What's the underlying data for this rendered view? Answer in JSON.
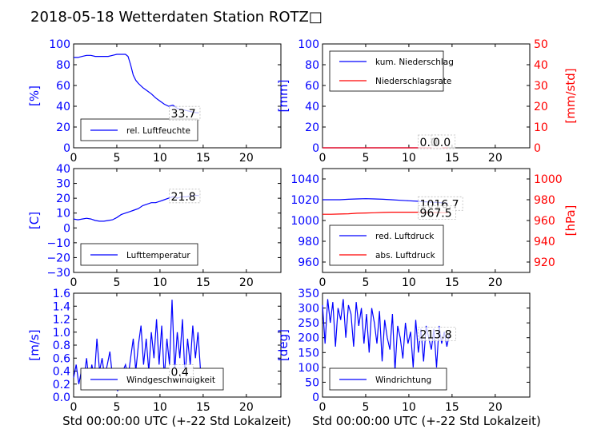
{
  "title": "2018-05-18 Wetterdaten Station ROTZ",
  "title_glyph": "□",
  "colors": {
    "blue": "#0000ff",
    "red": "#ff0000",
    "black": "#000000",
    "text": "#000000"
  },
  "xlabel": "Std 00:00:00 UTC (+-22 Std Lokalzeit)",
  "chart_data": [
    {
      "type": "line",
      "id": "humidity",
      "ylabel": "[%]",
      "ylim": [
        0,
        100
      ],
      "yticks": [
        "0",
        "20",
        "40",
        "60",
        "80",
        "100"
      ],
      "xlim": [
        0,
        24
      ],
      "xticks": [
        "0",
        "5",
        "10",
        "15",
        "20"
      ],
      "legend": "rel. Luftfeuchte",
      "legend_position": "lower-center",
      "latest_label": "33.7",
      "series": [
        {
          "name": "rel. Luftfeuchte",
          "color": "#0000ff",
          "x": [
            0,
            0.5,
            1,
            1.5,
            2,
            2.5,
            3,
            3.5,
            4,
            4.5,
            5,
            5.5,
            6,
            6.3,
            6.6,
            6.9,
            7.2,
            7.5,
            8,
            8.5,
            9,
            9.5,
            10,
            10.5,
            11,
            11.5,
            12,
            12.5,
            13,
            13.5,
            14,
            14.5
          ],
          "values": [
            87,
            87,
            88,
            89,
            89,
            88,
            88,
            88,
            88,
            89,
            90,
            90,
            90,
            88,
            80,
            70,
            65,
            62,
            58,
            55,
            52,
            48,
            45,
            42,
            40,
            41,
            38,
            37,
            36,
            35,
            34,
            33.7
          ]
        }
      ]
    },
    {
      "type": "line",
      "id": "precipitation",
      "ylabel": "[mm]",
      "ylabel_right": "[mm/std]",
      "ylim": [
        0,
        100
      ],
      "yticks": [
        "0",
        "20",
        "40",
        "60",
        "80",
        "100"
      ],
      "ylim_right": [
        0,
        50
      ],
      "yticks_right": [
        "0",
        "10",
        "20",
        "30",
        "40",
        "50"
      ],
      "xlim": [
        0,
        24
      ],
      "xticks": [
        "0",
        "5",
        "10",
        "15",
        "20"
      ],
      "legend_position": "upper-center",
      "latest_label_1": "0.0",
      "latest_label_2": "0.0",
      "series": [
        {
          "name": "kum. Niederschlag",
          "color": "#0000ff",
          "axis": "left",
          "x": [
            0,
            14.5
          ],
          "values": [
            0,
            0
          ]
        },
        {
          "name": "Niederschlagsrate",
          "color": "#ff0000",
          "axis": "right",
          "x": [
            0,
            14.5
          ],
          "values": [
            0,
            0
          ]
        }
      ]
    },
    {
      "type": "line",
      "id": "temperature",
      "ylabel": "[C]",
      "ylim": [
        -30,
        40
      ],
      "yticks": [
        "−30",
        "−20",
        "−10",
        "0",
        "10",
        "20",
        "30",
        "40"
      ],
      "xlim": [
        0,
        24
      ],
      "xticks": [
        "0",
        "5",
        "10",
        "15",
        "20"
      ],
      "legend": "Lufttemperatur",
      "legend_position": "lower-center",
      "latest_label": "21.8",
      "series": [
        {
          "name": "Lufttemperatur",
          "color": "#0000ff",
          "x": [
            0,
            0.5,
            1,
            1.5,
            2,
            2.5,
            3,
            3.5,
            4,
            4.5,
            5,
            5.5,
            6,
            6.5,
            7,
            7.5,
            8,
            8.5,
            9,
            9.5,
            10,
            10.5,
            11,
            11.5,
            12,
            12.5,
            13,
            13.5,
            14,
            14.5
          ],
          "values": [
            6,
            5.5,
            6,
            6.5,
            6,
            5,
            4.5,
            4.5,
            5,
            5.5,
            7,
            9,
            10,
            11,
            12,
            13,
            15,
            16,
            17,
            17,
            18,
            19,
            20,
            21,
            20,
            21,
            21,
            21.5,
            22,
            21.8
          ]
        }
      ]
    },
    {
      "type": "line",
      "id": "pressure",
      "ylabel_right": "[hPa]",
      "ylim": [
        950,
        1050
      ],
      "yticks": [
        "960",
        "980",
        "1000",
        "1020",
        "1040"
      ],
      "ylim_right": [
        910,
        1010
      ],
      "yticks_right": [
        "920",
        "940",
        "960",
        "980",
        "1000"
      ],
      "xlim": [
        0,
        24
      ],
      "xticks": [
        "0",
        "5",
        "10",
        "15",
        "20"
      ],
      "legend_position": "lower-center",
      "latest_label_1": "1016.7",
      "latest_label_2": "967.5",
      "series": [
        {
          "name": "red. Luftdruck",
          "color": "#0000ff",
          "axis": "left",
          "x": [
            0,
            1,
            2,
            3,
            4,
            5,
            6,
            7,
            8,
            9,
            10,
            11,
            12,
            13,
            14,
            14.5
          ],
          "values": [
            1020,
            1020,
            1020,
            1020.5,
            1020.8,
            1021,
            1020.8,
            1020.5,
            1020,
            1019.5,
            1019,
            1018.5,
            1018,
            1017.5,
            1017,
            1016.7
          ]
        },
        {
          "name": "abs. Luftdruck",
          "color": "#ff0000",
          "axis": "right",
          "x": [
            0,
            1,
            2,
            3,
            4,
            5,
            6,
            7,
            8,
            9,
            10,
            11,
            12,
            13,
            14,
            14.5
          ],
          "values": [
            966,
            966,
            966.2,
            966.5,
            967,
            967.2,
            967.5,
            967.8,
            968,
            968,
            968,
            968,
            967.8,
            967.7,
            967.6,
            967.5
          ]
        }
      ]
    },
    {
      "type": "line",
      "id": "wind_speed",
      "ylabel": "[m/s]",
      "ylim": [
        0,
        1.6
      ],
      "yticks": [
        "0.0",
        "0.2",
        "0.4",
        "0.6",
        "0.8",
        "1.0",
        "1.2",
        "1.4",
        "1.6"
      ],
      "xlim": [
        0,
        24
      ],
      "xticks": [
        "0",
        "5",
        "10",
        "15",
        "20"
      ],
      "legend": "Windgeschwindigkeit",
      "legend_position": "lower-center",
      "latest_label": "0.4",
      "series": [
        {
          "name": "Windgeschwindigkeit",
          "color": "#0000ff",
          "x": [
            0,
            0.3,
            0.6,
            0.9,
            1.2,
            1.5,
            1.8,
            2.1,
            2.4,
            2.7,
            3.0,
            3.3,
            3.6,
            3.9,
            4.2,
            4.5,
            4.8,
            5.1,
            5.4,
            5.7,
            6.0,
            6.3,
            6.6,
            6.9,
            7.2,
            7.5,
            7.8,
            8.1,
            8.4,
            8.7,
            9.0,
            9.3,
            9.6,
            9.9,
            10.2,
            10.5,
            10.8,
            11.1,
            11.4,
            11.7,
            12.0,
            12.3,
            12.6,
            12.9,
            13.2,
            13.5,
            13.8,
            14.1,
            14.4,
            14.7
          ],
          "values": [
            0.3,
            0.5,
            0.2,
            0.4,
            0.3,
            0.6,
            0.2,
            0.5,
            0.3,
            0.9,
            0.4,
            0.6,
            0.3,
            0.5,
            0.7,
            0.3,
            0.2,
            0.1,
            0.2,
            0.4,
            0.5,
            0.3,
            0.6,
            0.9,
            0.4,
            0.8,
            1.1,
            0.5,
            0.9,
            0.4,
            1.0,
            0.6,
            1.2,
            0.5,
            1.1,
            0.3,
            0.9,
            0.5,
            1.5,
            0.4,
            1.0,
            0.6,
            1.2,
            0.3,
            0.9,
            0.5,
            1.1,
            0.6,
            1.0,
            0.4
          ]
        }
      ]
    },
    {
      "type": "line",
      "id": "wind_direction",
      "ylabel": "[deg]",
      "ylim": [
        0,
        350
      ],
      "yticks": [
        "0",
        "50",
        "100",
        "150",
        "200",
        "250",
        "300",
        "350"
      ],
      "xlim": [
        0,
        24
      ],
      "xticks": [
        "0",
        "5",
        "10",
        "15",
        "20"
      ],
      "legend": "Windrichtung",
      "legend_position": "lower-center",
      "latest_label": "213.8",
      "series": [
        {
          "name": "Windrichtung",
          "color": "#0000ff",
          "x": [
            0,
            0.3,
            0.6,
            0.9,
            1.2,
            1.5,
            1.8,
            2.1,
            2.4,
            2.7,
            3.0,
            3.3,
            3.6,
            3.9,
            4.2,
            4.5,
            4.8,
            5.1,
            5.4,
            5.7,
            6.0,
            6.3,
            6.6,
            6.9,
            7.2,
            7.5,
            7.8,
            8.1,
            8.4,
            8.7,
            9.0,
            9.3,
            9.6,
            9.9,
            10.2,
            10.5,
            10.8,
            11.1,
            11.4,
            11.7,
            12.0,
            12.3,
            12.6,
            12.9,
            13.2,
            13.5,
            13.8,
            14.1,
            14.4,
            14.7
          ],
          "values": [
            310,
            180,
            330,
            250,
            320,
            170,
            300,
            260,
            330,
            200,
            310,
            280,
            170,
            320,
            240,
            300,
            180,
            280,
            150,
            300,
            250,
            180,
            290,
            120,
            260,
            200,
            160,
            280,
            90,
            240,
            200,
            130,
            250,
            180,
            220,
            100,
            260,
            150,
            230,
            120,
            240,
            200,
            160,
            230,
            100,
            240,
            180,
            220,
            170,
            213.8
          ]
        }
      ]
    }
  ]
}
